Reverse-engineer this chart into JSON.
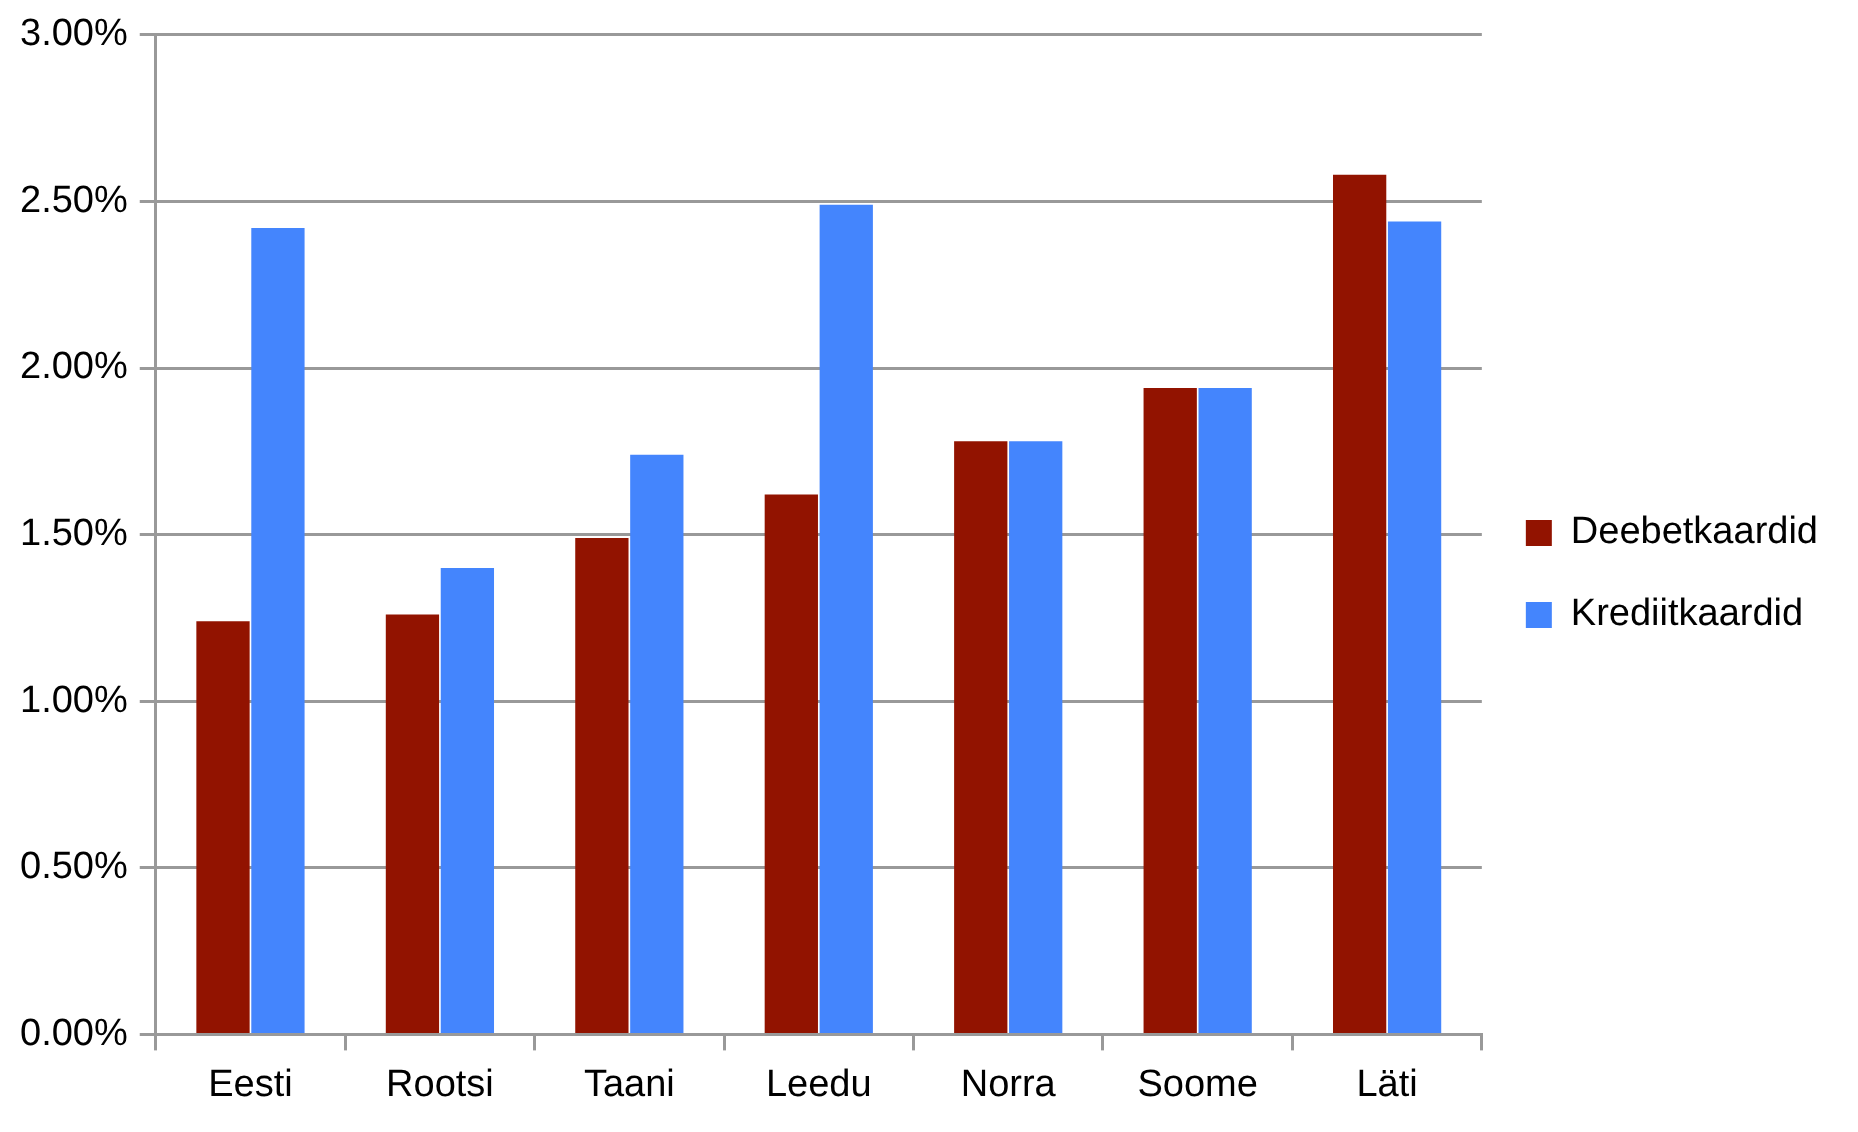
{
  "chart_data": {
    "type": "bar",
    "categories": [
      "Eesti",
      "Rootsi",
      "Taani",
      "Leedu",
      "Norra",
      "Soome",
      "Läti"
    ],
    "series": [
      {
        "name": "Deebetkaardid",
        "color": "#921300",
        "values": [
          1.24,
          1.26,
          1.49,
          1.62,
          1.78,
          1.94,
          2.58
        ]
      },
      {
        "name": "Krediitkaardid",
        "color": "#4485fd",
        "values": [
          2.42,
          1.4,
          1.74,
          2.49,
          1.78,
          1.94,
          2.44
        ]
      }
    ],
    "ylim": [
      0,
      3
    ],
    "yticks": [
      {
        "value": 0,
        "label": "0.00%"
      },
      {
        "value": 0.5,
        "label": "0.50%"
      },
      {
        "value": 1,
        "label": "1.00%"
      },
      {
        "value": 1.5,
        "label": "1.50%"
      },
      {
        "value": 2,
        "label": "2.00%"
      },
      {
        "value": 2.5,
        "label": "2.50%"
      },
      {
        "value": 3,
        "label": "3.00%"
      }
    ],
    "grid": "y",
    "legend": "right"
  }
}
